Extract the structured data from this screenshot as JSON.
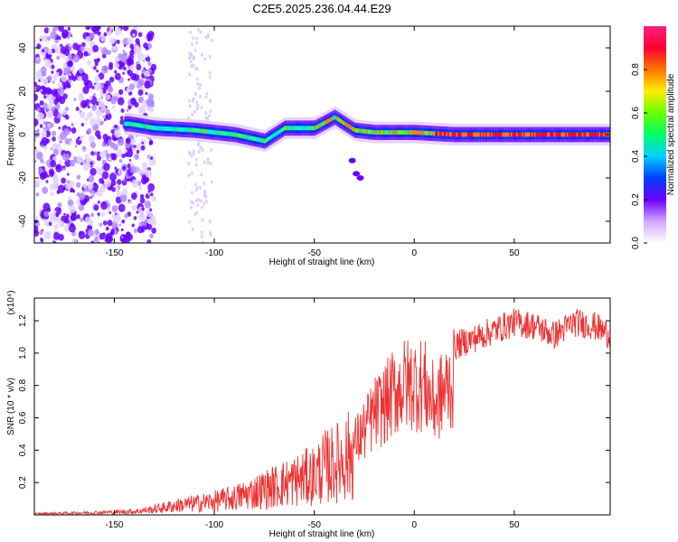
{
  "title": "C2E5.2025.236.04.44.E29",
  "chart_data": [
    {
      "type": "heatmap",
      "name": "spectrogram",
      "xlabel": "Height of straight line (km)",
      "ylabel": "Frequency (Hz)",
      "xlim": [
        -190,
        98
      ],
      "ylim": [
        -50,
        50
      ],
      "xticks": [
        -150,
        -100,
        -50,
        0,
        50
      ],
      "yticks": [
        -40,
        -20,
        0,
        20,
        40
      ],
      "colorbar": {
        "label": "Normalized spectral amplitude",
        "range": [
          0,
          1
        ],
        "ticks": [
          0.0,
          0.2,
          0.4,
          0.6,
          0.8
        ]
      },
      "ridge": {
        "description_points_x": [
          -143,
          -130,
          -110,
          -90,
          -75,
          -65,
          -50,
          -40,
          -30,
          -20,
          0,
          20,
          50,
          97
        ],
        "description_points_freq": [
          5,
          3,
          2,
          0,
          -3,
          3,
          3,
          8,
          2,
          1,
          1,
          0,
          0,
          0
        ]
      }
    },
    {
      "type": "line",
      "name": "snr",
      "xlabel": "Height of straight line (km)",
      "ylabel": "SNR (10 * v/v)",
      "multiplier": "(x10⁴)",
      "xlim": [
        -190,
        98
      ],
      "ylim": [
        0,
        1.34
      ],
      "xticks": [
        -150,
        -100,
        -50,
        0,
        50
      ],
      "yticks": [
        0.2,
        0.4,
        0.6,
        0.8,
        1.0,
        1.2
      ],
      "color": "#ee3333",
      "series": [
        {
          "name": "SNR envelope",
          "x": [
            -190,
            -160,
            -140,
            -130,
            -120,
            -110,
            -100,
            -90,
            -80,
            -70,
            -60,
            -50,
            -45,
            -40,
            -35,
            -30,
            -25,
            -20,
            -15,
            -10,
            -5,
            0,
            5,
            10,
            15,
            20,
            25,
            30,
            40,
            50,
            60,
            70,
            80,
            90,
            98
          ],
          "values": [
            0.01,
            0.02,
            0.03,
            0.05,
            0.08,
            0.1,
            0.12,
            0.15,
            0.2,
            0.25,
            0.3,
            0.35,
            0.42,
            0.45,
            0.5,
            0.55,
            0.65,
            0.78,
            0.85,
            0.95,
            1.0,
            1.02,
            1.0,
            0.85,
            0.95,
            1.05,
            1.08,
            1.1,
            1.15,
            1.2,
            1.18,
            1.12,
            1.2,
            1.18,
            1.12
          ]
        }
      ]
    }
  ]
}
